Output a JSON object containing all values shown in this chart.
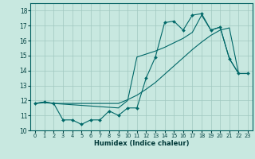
{
  "title": "",
  "xlabel": "Humidex (Indice chaleur)",
  "xlim": [
    -0.5,
    23.5
  ],
  "ylim": [
    10,
    18.5
  ],
  "yticks": [
    10,
    11,
    12,
    13,
    14,
    15,
    16,
    17,
    18
  ],
  "xticks": [
    0,
    1,
    2,
    3,
    4,
    5,
    6,
    7,
    8,
    9,
    10,
    11,
    12,
    13,
    14,
    15,
    16,
    17,
    18,
    19,
    20,
    21,
    22,
    23
  ],
  "bg_color": "#c8e8e0",
  "line_color": "#006868",
  "grid_color": "#a0c8c0",
  "series": {
    "line1_x": [
      0,
      1,
      2,
      3,
      4,
      5,
      6,
      7,
      8,
      9,
      10,
      11,
      12,
      13,
      14,
      15,
      16,
      17,
      18,
      19,
      20,
      21,
      22,
      23
    ],
    "line1_y": [
      11.8,
      11.9,
      11.8,
      10.7,
      10.7,
      10.4,
      10.7,
      10.7,
      11.3,
      11.0,
      11.5,
      11.5,
      13.5,
      14.9,
      17.2,
      17.3,
      16.7,
      17.7,
      17.8,
      16.7,
      16.9,
      14.8,
      13.8,
      13.8
    ],
    "line2_x": [
      0,
      1,
      2,
      3,
      4,
      5,
      6,
      7,
      8,
      9,
      10,
      11,
      12,
      13,
      14,
      15,
      16,
      17,
      18,
      19,
      20,
      21,
      22,
      23
    ],
    "line2_y": [
      11.8,
      11.85,
      11.8,
      11.8,
      11.8,
      11.8,
      11.8,
      11.8,
      11.8,
      11.8,
      12.05,
      12.35,
      12.75,
      13.2,
      13.75,
      14.3,
      14.85,
      15.4,
      15.9,
      16.35,
      16.7,
      16.85,
      13.8,
      13.8
    ],
    "line3_x": [
      0,
      1,
      2,
      9,
      10,
      11,
      12,
      13,
      14,
      15,
      16,
      17,
      18,
      19,
      20,
      21,
      22,
      23
    ],
    "line3_y": [
      11.8,
      11.9,
      11.8,
      11.5,
      12.0,
      14.9,
      15.1,
      15.3,
      15.55,
      15.85,
      16.15,
      16.55,
      17.7,
      16.7,
      16.9,
      14.8,
      13.8,
      13.8
    ]
  }
}
